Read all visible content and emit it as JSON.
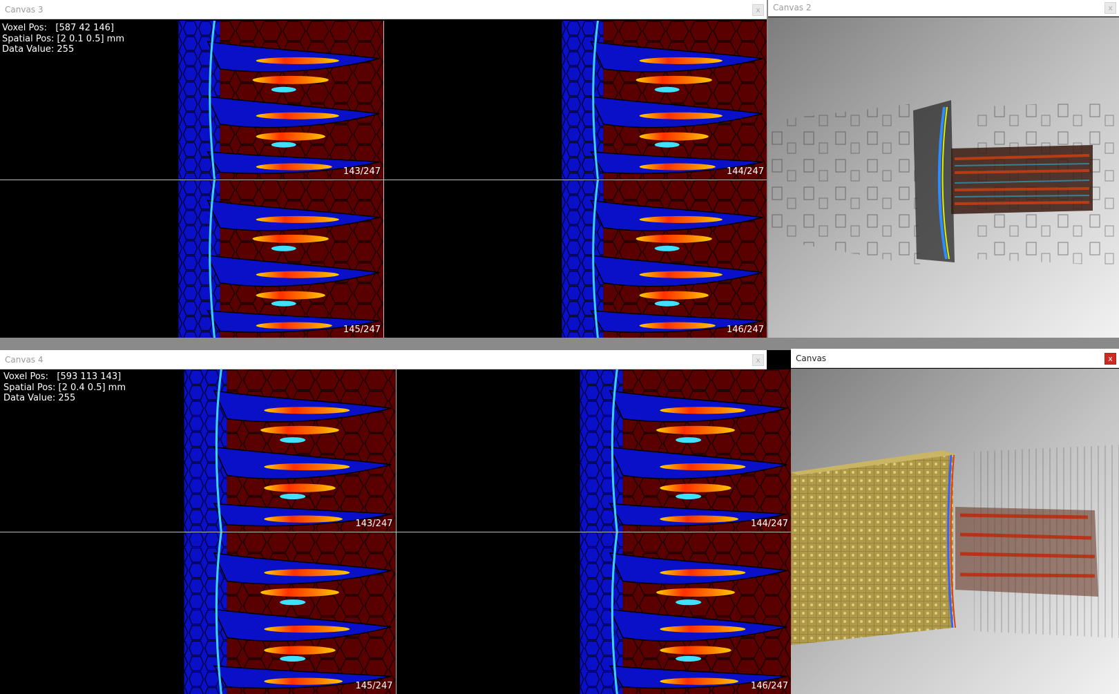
{
  "colors": {
    "tissue": "#5a0000",
    "blue": "#0a10c8",
    "hot": "#ff6a00",
    "titlebar": "#ffffff",
    "close_active": "#cf2a22"
  },
  "canvas3": {
    "title": "Canvas 3",
    "close_glyph": "x",
    "info": {
      "voxel_label": "Voxel Pos:",
      "voxel_value": "[587 42 146]",
      "spatial_label": "Spatial Pos:",
      "spatial_value": "[2 0.1 0.5] mm",
      "data_label": "Data Value:",
      "data_value": "255"
    },
    "slices": [
      "143/247",
      "144/247",
      "145/247",
      "146/247"
    ]
  },
  "canvas2": {
    "title": "Canvas 2",
    "close_glyph": "x"
  },
  "canvas4": {
    "title": "Canvas 4",
    "close_glyph": "x",
    "info": {
      "voxel_label": "Voxel Pos:",
      "voxel_value": "[593 113 143]",
      "spatial_label": "Spatial Pos:",
      "spatial_value": "[2 0.4 0.5] mm",
      "data_label": "Data Value:",
      "data_value": "255"
    },
    "slices": [
      "143/247",
      "144/247",
      "145/247",
      "146/247"
    ]
  },
  "canvas": {
    "title": "Canvas",
    "close_glyph": "x"
  }
}
